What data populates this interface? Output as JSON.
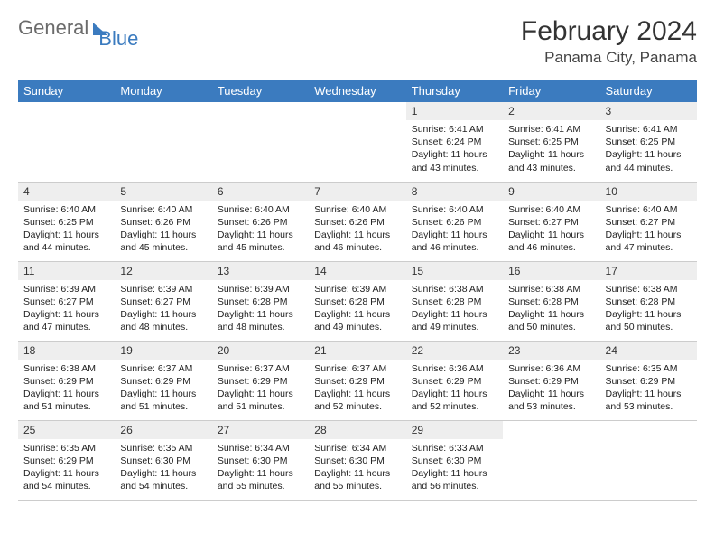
{
  "brand": {
    "part1": "General",
    "part2": "Blue"
  },
  "title": "February 2024",
  "location": "Panama City, Panama",
  "colors": {
    "header_bg": "#3b7bbf",
    "header_text": "#ffffff",
    "daynum_bg": "#eeeeee",
    "grid_border": "#cccccc",
    "body_text": "#222222",
    "brand_gray": "#6b6b6b",
    "brand_blue": "#3b7bbf"
  },
  "weekdays": [
    "Sunday",
    "Monday",
    "Tuesday",
    "Wednesday",
    "Thursday",
    "Friday",
    "Saturday"
  ],
  "weeks": [
    [
      {
        "empty": true
      },
      {
        "empty": true
      },
      {
        "empty": true
      },
      {
        "empty": true
      },
      {
        "day": "1",
        "sunrise": "Sunrise: 6:41 AM",
        "sunset": "Sunset: 6:24 PM",
        "daylight": "Daylight: 11 hours and 43 minutes."
      },
      {
        "day": "2",
        "sunrise": "Sunrise: 6:41 AM",
        "sunset": "Sunset: 6:25 PM",
        "daylight": "Daylight: 11 hours and 43 minutes."
      },
      {
        "day": "3",
        "sunrise": "Sunrise: 6:41 AM",
        "sunset": "Sunset: 6:25 PM",
        "daylight": "Daylight: 11 hours and 44 minutes."
      }
    ],
    [
      {
        "day": "4",
        "sunrise": "Sunrise: 6:40 AM",
        "sunset": "Sunset: 6:25 PM",
        "daylight": "Daylight: 11 hours and 44 minutes."
      },
      {
        "day": "5",
        "sunrise": "Sunrise: 6:40 AM",
        "sunset": "Sunset: 6:26 PM",
        "daylight": "Daylight: 11 hours and 45 minutes."
      },
      {
        "day": "6",
        "sunrise": "Sunrise: 6:40 AM",
        "sunset": "Sunset: 6:26 PM",
        "daylight": "Daylight: 11 hours and 45 minutes."
      },
      {
        "day": "7",
        "sunrise": "Sunrise: 6:40 AM",
        "sunset": "Sunset: 6:26 PM",
        "daylight": "Daylight: 11 hours and 46 minutes."
      },
      {
        "day": "8",
        "sunrise": "Sunrise: 6:40 AM",
        "sunset": "Sunset: 6:26 PM",
        "daylight": "Daylight: 11 hours and 46 minutes."
      },
      {
        "day": "9",
        "sunrise": "Sunrise: 6:40 AM",
        "sunset": "Sunset: 6:27 PM",
        "daylight": "Daylight: 11 hours and 46 minutes."
      },
      {
        "day": "10",
        "sunrise": "Sunrise: 6:40 AM",
        "sunset": "Sunset: 6:27 PM",
        "daylight": "Daylight: 11 hours and 47 minutes."
      }
    ],
    [
      {
        "day": "11",
        "sunrise": "Sunrise: 6:39 AM",
        "sunset": "Sunset: 6:27 PM",
        "daylight": "Daylight: 11 hours and 47 minutes."
      },
      {
        "day": "12",
        "sunrise": "Sunrise: 6:39 AM",
        "sunset": "Sunset: 6:27 PM",
        "daylight": "Daylight: 11 hours and 48 minutes."
      },
      {
        "day": "13",
        "sunrise": "Sunrise: 6:39 AM",
        "sunset": "Sunset: 6:28 PM",
        "daylight": "Daylight: 11 hours and 48 minutes."
      },
      {
        "day": "14",
        "sunrise": "Sunrise: 6:39 AM",
        "sunset": "Sunset: 6:28 PM",
        "daylight": "Daylight: 11 hours and 49 minutes."
      },
      {
        "day": "15",
        "sunrise": "Sunrise: 6:38 AM",
        "sunset": "Sunset: 6:28 PM",
        "daylight": "Daylight: 11 hours and 49 minutes."
      },
      {
        "day": "16",
        "sunrise": "Sunrise: 6:38 AM",
        "sunset": "Sunset: 6:28 PM",
        "daylight": "Daylight: 11 hours and 50 minutes."
      },
      {
        "day": "17",
        "sunrise": "Sunrise: 6:38 AM",
        "sunset": "Sunset: 6:28 PM",
        "daylight": "Daylight: 11 hours and 50 minutes."
      }
    ],
    [
      {
        "day": "18",
        "sunrise": "Sunrise: 6:38 AM",
        "sunset": "Sunset: 6:29 PM",
        "daylight": "Daylight: 11 hours and 51 minutes."
      },
      {
        "day": "19",
        "sunrise": "Sunrise: 6:37 AM",
        "sunset": "Sunset: 6:29 PM",
        "daylight": "Daylight: 11 hours and 51 minutes."
      },
      {
        "day": "20",
        "sunrise": "Sunrise: 6:37 AM",
        "sunset": "Sunset: 6:29 PM",
        "daylight": "Daylight: 11 hours and 51 minutes."
      },
      {
        "day": "21",
        "sunrise": "Sunrise: 6:37 AM",
        "sunset": "Sunset: 6:29 PM",
        "daylight": "Daylight: 11 hours and 52 minutes."
      },
      {
        "day": "22",
        "sunrise": "Sunrise: 6:36 AM",
        "sunset": "Sunset: 6:29 PM",
        "daylight": "Daylight: 11 hours and 52 minutes."
      },
      {
        "day": "23",
        "sunrise": "Sunrise: 6:36 AM",
        "sunset": "Sunset: 6:29 PM",
        "daylight": "Daylight: 11 hours and 53 minutes."
      },
      {
        "day": "24",
        "sunrise": "Sunrise: 6:35 AM",
        "sunset": "Sunset: 6:29 PM",
        "daylight": "Daylight: 11 hours and 53 minutes."
      }
    ],
    [
      {
        "day": "25",
        "sunrise": "Sunrise: 6:35 AM",
        "sunset": "Sunset: 6:29 PM",
        "daylight": "Daylight: 11 hours and 54 minutes."
      },
      {
        "day": "26",
        "sunrise": "Sunrise: 6:35 AM",
        "sunset": "Sunset: 6:30 PM",
        "daylight": "Daylight: 11 hours and 54 minutes."
      },
      {
        "day": "27",
        "sunrise": "Sunrise: 6:34 AM",
        "sunset": "Sunset: 6:30 PM",
        "daylight": "Daylight: 11 hours and 55 minutes."
      },
      {
        "day": "28",
        "sunrise": "Sunrise: 6:34 AM",
        "sunset": "Sunset: 6:30 PM",
        "daylight": "Daylight: 11 hours and 55 minutes."
      },
      {
        "day": "29",
        "sunrise": "Sunrise: 6:33 AM",
        "sunset": "Sunset: 6:30 PM",
        "daylight": "Daylight: 11 hours and 56 minutes."
      },
      {
        "empty": true
      },
      {
        "empty": true
      }
    ]
  ]
}
